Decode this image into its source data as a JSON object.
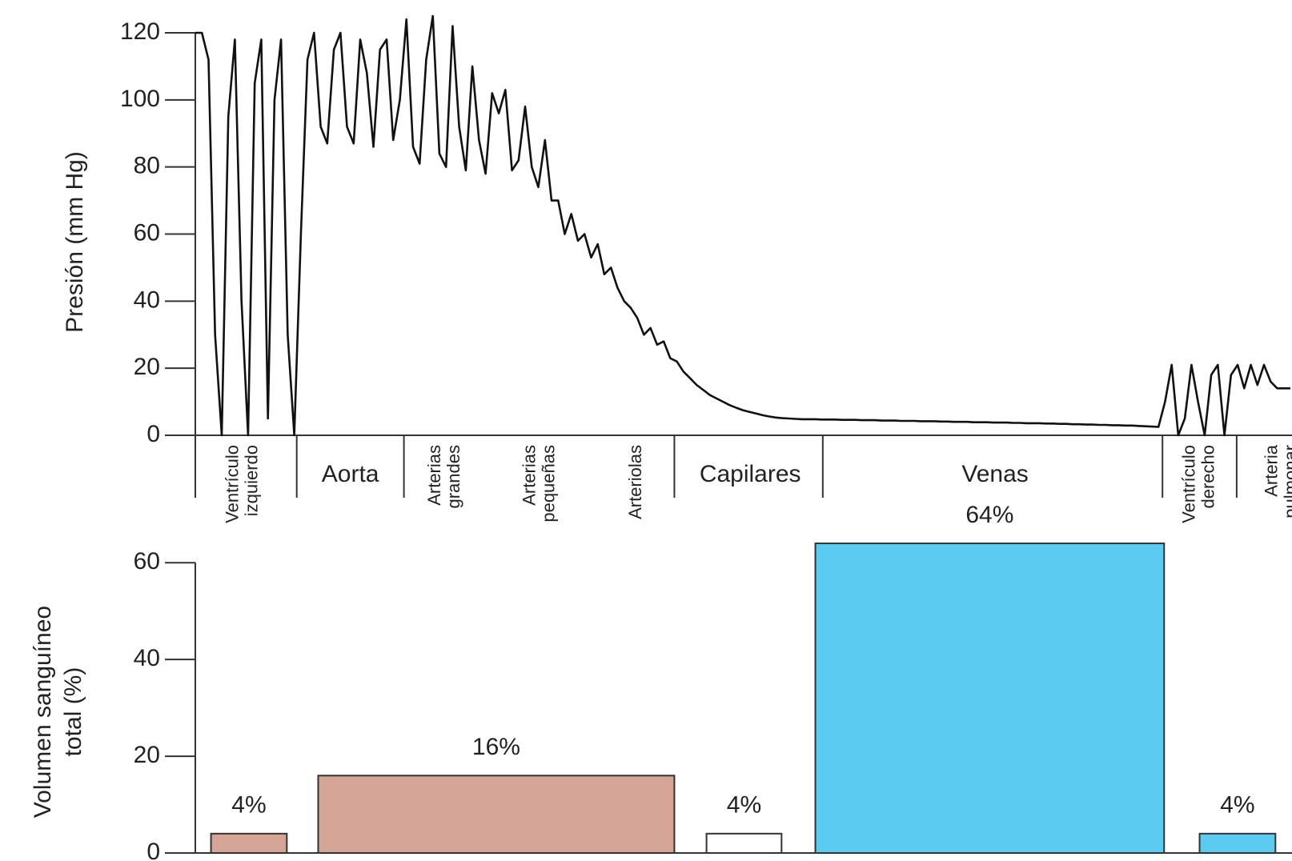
{
  "chart_data": [
    {
      "type": "line",
      "ylabel": "Presión (mm Hg)",
      "color": "#111111",
      "ylim": [
        0,
        120
      ],
      "yticks": [
        0,
        20,
        40,
        60,
        80,
        100,
        120
      ],
      "regions": [
        [
          "Ventrículo",
          "izquierdo"
        ],
        [
          "Aorta"
        ],
        [
          "Arterias",
          "grandes"
        ],
        [
          "Arterias",
          "pequeñas"
        ],
        [
          "Arteriolas"
        ],
        [
          "Capilares"
        ],
        [
          "Venas"
        ],
        [
          "Ventrículo",
          "derecho"
        ],
        [
          "Arteria",
          "pulmonar"
        ]
      ],
      "values": [
        120,
        120,
        112,
        30,
        0,
        95,
        118,
        40,
        0,
        105,
        118,
        5,
        100,
        118,
        30,
        0,
        60,
        112,
        120,
        92,
        87,
        115,
        120,
        92,
        87,
        118,
        108,
        86,
        115,
        118,
        88,
        100,
        124,
        86,
        81,
        112,
        125,
        84,
        80,
        122,
        92,
        79,
        110,
        88,
        78,
        102,
        96,
        103,
        79,
        82,
        98,
        80,
        74,
        88,
        70,
        70,
        60,
        66,
        58,
        60,
        53,
        57,
        48,
        50,
        44,
        40,
        38,
        35,
        30,
        32,
        27,
        28,
        23,
        22,
        19,
        17,
        15,
        13.5,
        12,
        11,
        10,
        9,
        8.2,
        7.5,
        7,
        6.5,
        6,
        5.6,
        5.3,
        5.1,
        5,
        4.9,
        4.8,
        4.8,
        4.8,
        4.7,
        4.7,
        4.7,
        4.6,
        4.6,
        4.6,
        4.5,
        4.5,
        4.5,
        4.4,
        4.4,
        4.4,
        4.3,
        4.3,
        4.3,
        4.2,
        4.2,
        4.2,
        4.1,
        4.1,
        4,
        4,
        4,
        3.9,
        3.9,
        3.9,
        3.8,
        3.8,
        3.8,
        3.7,
        3.7,
        3.6,
        3.6,
        3.6,
        3.5,
        3.5,
        3.4,
        3.4,
        3.3,
        3.3,
        3.2,
        3.2,
        3.1,
        3.1,
        3,
        3,
        2.9,
        2.9,
        2.8,
        2.7,
        2.6,
        2.5,
        10,
        21,
        0,
        5,
        21,
        10,
        0,
        18,
        21,
        0,
        18,
        21,
        14,
        21,
        15,
        21,
        16,
        14,
        14,
        14
      ]
    },
    {
      "type": "bar",
      "ylabel": [
        "Volumen sanguíneo",
        "total (%)"
      ],
      "ylim": [
        0,
        65
      ],
      "yticks": [
        0,
        20,
        40,
        60
      ],
      "categories": [
        null,
        null,
        null,
        null,
        null
      ],
      "values": [
        4,
        16,
        4,
        64,
        4
      ],
      "value_labels": [
        "4%",
        "16%",
        "4%",
        "64%",
        "4%"
      ],
      "colors": [
        "#d4a497",
        "#d4a497",
        "#ffffff",
        "#5ccbf2",
        "#5ccbf2"
      ]
    }
  ]
}
